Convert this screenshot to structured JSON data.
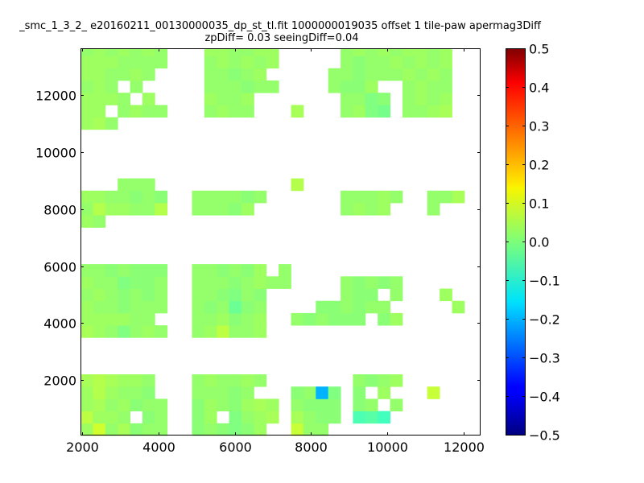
{
  "chart_data": {
    "type": "heatmap",
    "title": "_smc_1_3_2_ e20160211_00130000035_dp_st_tl.fit 1000000019035 offset 1 tile-paw apermag3Diff",
    "subtitle": "zpDiff= 0.03 seeingDiff=0.04",
    "xlabel": "",
    "ylabel": "",
    "xlim": [
      1950,
      12450
    ],
    "ylim": [
      50,
      13650
    ],
    "xticks": [
      2000,
      4000,
      6000,
      8000,
      10000,
      12000
    ],
    "yticks": [
      2000,
      4000,
      6000,
      8000,
      10000,
      12000
    ],
    "colorbar": {
      "range": [
        -0.5,
        0.5
      ],
      "ticks": [
        "0.5",
        "0.4",
        "0.3",
        "0.2",
        "0.1",
        "0.0",
        "−0.1",
        "−0.2",
        "−0.3",
        "−0.4",
        "−0.5"
      ],
      "colormap": "jet"
    },
    "cell_size": [
      325,
      430
    ],
    "x_origin": 1950,
    "y_origin": 50,
    "note_rows": "rows listed from bottom (y=50) upward; columns from x=1950; null = no data",
    "rows": [
      [
        0.03,
        0.08,
        0.02,
        0.04,
        0.01,
        0.02,
        0.02,
        null,
        null,
        0.01,
        0.02,
        0.01,
        0.0,
        0.01,
        0.03,
        null,
        null,
        0.07,
        0.02,
        0.02,
        null,
        null,
        null,
        null,
        null,
        null,
        null,
        null,
        null,
        null,
        null
      ],
      [
        0.06,
        0.03,
        0.03,
        0.02,
        null,
        0.01,
        0.02,
        null,
        null,
        0.01,
        0.03,
        null,
        0.0,
        0.02,
        0.03,
        0.04,
        null,
        0.04,
        0.02,
        0.01,
        0.01,
        null,
        -0.05,
        -0.04,
        -0.06,
        null,
        null,
        null,
        null,
        null,
        null
      ],
      [
        0.03,
        0.04,
        0.02,
        0.03,
        0.01,
        0.02,
        0.02,
        null,
        null,
        0.01,
        0.03,
        0.02,
        0.01,
        0.03,
        0.04,
        0.03,
        null,
        0.02,
        0.01,
        0.01,
        0.01,
        null,
        0.01,
        0.02,
        null,
        0.02,
        null,
        null,
        null,
        null,
        null
      ],
      [
        0.03,
        0.05,
        0.03,
        0.02,
        0.02,
        0.01,
        null,
        null,
        null,
        0.02,
        0.02,
        0.02,
        0.01,
        0.02,
        null,
        null,
        null,
        0.01,
        0.02,
        -0.2,
        0.0,
        null,
        0.01,
        null,
        0.03,
        null,
        null,
        null,
        0.07,
        null,
        null
      ],
      [
        0.04,
        0.05,
        0.04,
        0.03,
        0.03,
        0.02,
        null,
        null,
        null,
        0.02,
        0.03,
        0.02,
        0.02,
        0.03,
        0.02,
        null,
        null,
        null,
        null,
        null,
        null,
        null,
        0.02,
        0.01,
        0.02,
        0.03,
        null,
        null,
        null,
        null,
        null
      ],
      [
        null,
        null,
        null,
        null,
        null,
        null,
        null,
        null,
        null,
        null,
        null,
        null,
        null,
        null,
        null,
        null,
        null,
        null,
        null,
        null,
        null,
        null,
        null,
        null,
        null,
        null,
        null,
        null,
        null,
        null,
        null
      ],
      [
        null,
        null,
        null,
        null,
        null,
        null,
        null,
        null,
        null,
        null,
        null,
        null,
        null,
        null,
        null,
        null,
        null,
        null,
        null,
        null,
        null,
        null,
        null,
        null,
        null,
        null,
        null,
        null,
        null,
        null,
        null
      ],
      [
        null,
        null,
        null,
        null,
        null,
        null,
        null,
        null,
        null,
        null,
        null,
        null,
        null,
        null,
        null,
        null,
        null,
        null,
        null,
        null,
        null,
        null,
        null,
        null,
        null,
        null,
        null,
        null,
        null,
        null,
        null
      ],
      [
        0.04,
        0.03,
        0.02,
        0.0,
        0.02,
        0.03,
        0.02,
        null,
        null,
        0.02,
        0.03,
        0.06,
        0.02,
        0.02,
        0.03,
        null,
        null,
        null,
        null,
        null,
        null,
        null,
        null,
        null,
        null,
        null,
        null,
        null,
        null,
        null,
        null
      ],
      [
        0.03,
        0.03,
        0.03,
        0.03,
        0.02,
        0.02,
        null,
        null,
        null,
        0.02,
        0.02,
        0.03,
        0.01,
        0.02,
        0.03,
        null,
        null,
        0.02,
        0.01,
        0.02,
        0.01,
        0.01,
        0.01,
        null,
        0.01,
        0.03,
        null,
        null,
        null,
        null,
        null
      ],
      [
        0.03,
        0.02,
        0.02,
        0.01,
        0.02,
        0.02,
        0.02,
        null,
        null,
        0.02,
        0.01,
        0.02,
        -0.02,
        0.01,
        0.02,
        null,
        null,
        null,
        null,
        0.01,
        0.01,
        0.02,
        0.01,
        0.02,
        0.02,
        null,
        null,
        null,
        null,
        null,
        0.03
      ],
      [
        0.02,
        0.03,
        0.02,
        0.01,
        0.02,
        0.01,
        0.02,
        null,
        null,
        0.02,
        0.02,
        0.01,
        0.0,
        0.02,
        0.01,
        null,
        null,
        null,
        null,
        null,
        null,
        0.02,
        0.01,
        0.01,
        null,
        0.02,
        null,
        null,
        null,
        0.03,
        null
      ],
      [
        0.03,
        0.02,
        0.02,
        0.0,
        0.01,
        0.01,
        0.02,
        null,
        null,
        0.02,
        0.02,
        0.02,
        0.01,
        0.02,
        0.03,
        0.02,
        0.02,
        null,
        null,
        null,
        null,
        0.02,
        0.01,
        0.02,
        0.01,
        0.02,
        null,
        null,
        null,
        null,
        null
      ],
      [
        0.02,
        0.02,
        0.01,
        0.02,
        0.01,
        0.01,
        0.01,
        null,
        null,
        0.02,
        0.02,
        0.01,
        0.02,
        0.01,
        0.03,
        null,
        0.02,
        null,
        null,
        null,
        null,
        null,
        null,
        null,
        null,
        null,
        null,
        null,
        null,
        null,
        null
      ],
      [
        null,
        null,
        null,
        null,
        null,
        null,
        null,
        null,
        null,
        null,
        null,
        null,
        null,
        null,
        null,
        null,
        null,
        null,
        null,
        null,
        null,
        null,
        null,
        null,
        null,
        null,
        null,
        null,
        null,
        null,
        null
      ],
      [
        null,
        null,
        null,
        null,
        null,
        null,
        null,
        null,
        null,
        null,
        null,
        null,
        null,
        null,
        null,
        null,
        null,
        null,
        null,
        null,
        null,
        null,
        null,
        null,
        null,
        null,
        null,
        null,
        null,
        null,
        null
      ],
      [
        null,
        null,
        null,
        null,
        null,
        null,
        null,
        null,
        null,
        null,
        null,
        null,
        null,
        null,
        null,
        null,
        null,
        null,
        null,
        null,
        null,
        null,
        null,
        null,
        null,
        null,
        null,
        null,
        null,
        null,
        null
      ],
      [
        0.03,
        0.02,
        null,
        null,
        null,
        null,
        null,
        null,
        null,
        null,
        null,
        null,
        null,
        null,
        null,
        null,
        null,
        null,
        null,
        null,
        null,
        null,
        null,
        null,
        null,
        null,
        null,
        null,
        null,
        null,
        null
      ],
      [
        0.02,
        0.05,
        0.03,
        0.03,
        0.02,
        0.02,
        0.05,
        null,
        null,
        0.02,
        0.02,
        0.02,
        0.01,
        0.03,
        null,
        null,
        null,
        null,
        null,
        null,
        null,
        0.02,
        0.03,
        0.02,
        0.03,
        null,
        null,
        null,
        0.02,
        null,
        null
      ],
      [
        0.03,
        0.03,
        0.02,
        0.02,
        0.01,
        0.02,
        0.01,
        null,
        null,
        0.02,
        0.02,
        0.02,
        0.02,
        0.01,
        0.02,
        null,
        null,
        null,
        null,
        null,
        null,
        0.02,
        0.02,
        0.02,
        0.03,
        0.02,
        null,
        null,
        0.02,
        0.02,
        0.04
      ],
      [
        null,
        null,
        null,
        0.02,
        0.02,
        0.02,
        null,
        null,
        null,
        null,
        null,
        null,
        null,
        null,
        null,
        null,
        null,
        0.05,
        null,
        null,
        null,
        null,
        null,
        null,
        null,
        null,
        null,
        null,
        null,
        null,
        null
      ],
      [
        null,
        null,
        null,
        null,
        null,
        null,
        null,
        null,
        null,
        null,
        null,
        null,
        null,
        null,
        null,
        null,
        null,
        null,
        null,
        null,
        null,
        null,
        null,
        null,
        null,
        null,
        null,
        null,
        null,
        null,
        null
      ],
      [
        null,
        null,
        null,
        null,
        null,
        null,
        null,
        null,
        null,
        null,
        null,
        null,
        null,
        null,
        null,
        null,
        null,
        null,
        null,
        null,
        null,
        null,
        null,
        null,
        null,
        null,
        null,
        null,
        null,
        null,
        null
      ],
      [
        null,
        null,
        null,
        null,
        null,
        null,
        null,
        null,
        null,
        null,
        null,
        null,
        null,
        null,
        null,
        null,
        null,
        null,
        null,
        null,
        null,
        null,
        null,
        null,
        null,
        null,
        null,
        null,
        null,
        null,
        null
      ],
      [
        null,
        null,
        null,
        null,
        null,
        null,
        null,
        null,
        null,
        null,
        null,
        null,
        null,
        null,
        null,
        null,
        null,
        null,
        null,
        null,
        null,
        null,
        null,
        null,
        null,
        null,
        null,
        null,
        null,
        null,
        null
      ],
      [
        0.03,
        0.04,
        0.02,
        null,
        null,
        null,
        null,
        null,
        null,
        null,
        null,
        null,
        null,
        null,
        null,
        null,
        null,
        null,
        null,
        null,
        null,
        null,
        null,
        null,
        null,
        null,
        null,
        null,
        null,
        null,
        null
      ],
      [
        0.03,
        0.03,
        null,
        0.02,
        0.03,
        0.02,
        0.02,
        null,
        null,
        null,
        0.02,
        0.03,
        0.02,
        0.02,
        null,
        null,
        null,
        0.04,
        null,
        null,
        null,
        0.02,
        0.03,
        0.0,
        -0.01,
        null,
        0.02,
        0.02,
        0.03,
        0.04,
        null
      ],
      [
        0.03,
        0.03,
        0.03,
        0.02,
        null,
        0.03,
        null,
        null,
        null,
        null,
        0.03,
        0.02,
        0.02,
        0.03,
        null,
        null,
        null,
        null,
        null,
        null,
        null,
        0.02,
        0.02,
        0.0,
        0.01,
        null,
        0.02,
        0.03,
        0.02,
        0.03,
        null
      ],
      [
        0.02,
        0.03,
        0.02,
        null,
        0.02,
        null,
        null,
        null,
        null,
        null,
        0.02,
        0.02,
        0.02,
        0.01,
        0.02,
        0.02,
        null,
        null,
        null,
        null,
        0.02,
        0.01,
        0.01,
        0.03,
        null,
        null,
        0.02,
        0.03,
        0.02,
        0.02,
        null
      ],
      [
        0.03,
        0.03,
        0.02,
        0.02,
        0.03,
        0.02,
        null,
        null,
        null,
        null,
        0.02,
        0.02,
        0.01,
        0.02,
        0.03,
        null,
        null,
        null,
        null,
        null,
        0.02,
        0.02,
        0.01,
        0.02,
        0.02,
        0.02,
        0.03,
        0.02,
        0.03,
        0.02,
        null
      ],
      [
        0.03,
        0.03,
        0.03,
        0.02,
        0.02,
        0.02,
        0.02,
        null,
        null,
        null,
        0.02,
        0.03,
        0.02,
        0.03,
        0.02,
        0.03,
        null,
        null,
        null,
        null,
        null,
        0.02,
        0.01,
        0.02,
        0.02,
        0.03,
        0.02,
        0.03,
        0.02,
        0.03,
        null
      ],
      [
        0.02,
        0.03,
        0.02,
        0.03,
        0.02,
        0.03,
        0.02,
        null,
        null,
        null,
        0.03,
        0.03,
        0.02,
        0.02,
        0.03,
        0.03,
        null,
        null,
        null,
        null,
        null,
        0.02,
        0.03,
        0.02,
        0.03,
        0.02,
        0.03,
        0.03,
        0.02,
        0.03,
        null
      ]
    ]
  }
}
